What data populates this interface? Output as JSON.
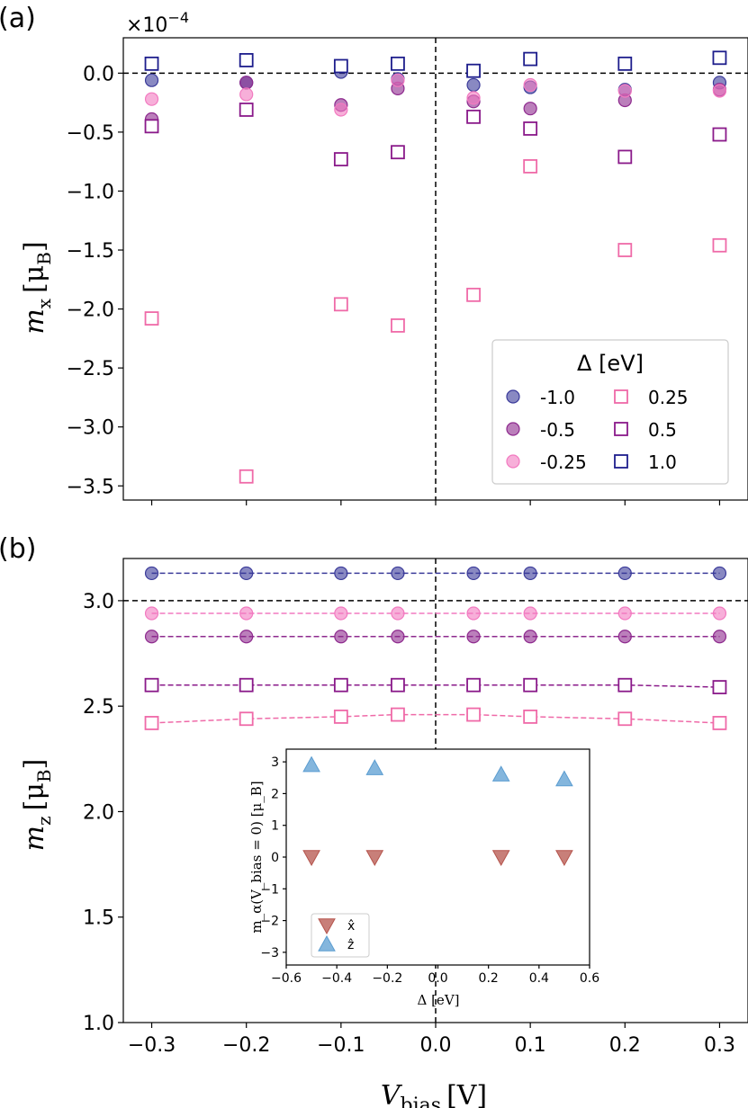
{
  "colors": {
    "dark_blue": "#3b3b9a",
    "purple": "#8e2a8e",
    "pink": "#f27ac0",
    "navy": "#1d1d8c",
    "sq_purple": "#8a1a8a",
    "sq_pink": "#ef6aa8",
    "inset_down": "#b5544c",
    "inset_up": "#5b9dd1"
  },
  "panel_a": {
    "letter": "(a)",
    "scale_label": "×10",
    "scale_exp": "−4",
    "ylabel_main": "m",
    "ylabel_sub": "x",
    "ylabel_unit": "[μ",
    "ylabel_unit_sub": "B",
    "ylabel_close": "]"
  },
  "panel_b": {
    "letter": "(b)",
    "ylabel_main": "m",
    "ylabel_sub": "z",
    "ylabel_unit": "[μ",
    "ylabel_unit_sub": "B",
    "ylabel_close": "]"
  },
  "xlabel": {
    "main": "V",
    "sub": "bias",
    "unit": "[V]"
  },
  "legend": {
    "title": "Δ [eV]",
    "entries": [
      {
        "label": "-1.0",
        "marker": "circle",
        "color": "#3b3b9a"
      },
      {
        "label": "-0.5",
        "marker": "circle",
        "color": "#8e2a8e"
      },
      {
        "label": "-0.25",
        "marker": "circle",
        "color": "#f27ac0"
      },
      {
        "label": "0.25",
        "marker": "square",
        "color": "#ef6aa8"
      },
      {
        "label": "0.5",
        "marker": "square",
        "color": "#8a1a8a"
      },
      {
        "label": "1.0",
        "marker": "square",
        "color": "#1d1d8c"
      }
    ]
  },
  "inset": {
    "ylabel": "m_α(V_bias = 0) [μ_B]",
    "xlabel": "Δ [eV]",
    "legend": [
      {
        "label": "x̂",
        "marker": "triangle-down",
        "color": "#b5544c"
      },
      {
        "label": "ẑ",
        "marker": "triangle-up",
        "color": "#5b9dd1"
      }
    ]
  },
  "chart_data": [
    {
      "type": "scatter",
      "panel": "a",
      "xlabel": "V_bias [V]",
      "ylabel": "m_x [μ_B]",
      "y_scale_factor": "×10^-4",
      "xlim": [
        -0.33,
        0.33
      ],
      "ylim": [
        -3.62,
        0.3
      ],
      "xticks": [
        -0.3,
        -0.2,
        -0.1,
        0.0,
        0.1,
        0.2,
        0.3
      ],
      "xtick_labels": [
        "−0.3",
        "−0.2",
        "−0.1",
        "0.0",
        "0.1",
        "0.2",
        "0.3"
      ],
      "yticks": [
        0.0,
        -0.5,
        -1.0,
        -1.5,
        -2.0,
        -2.5,
        -3.0,
        -3.5
      ],
      "ytick_labels": [
        "0.0",
        "−0.5",
        "−1.0",
        "−1.5",
        "−2.0",
        "−2.5",
        "−3.0",
        "−3.5"
      ],
      "reference_lines": {
        "horizontal": 0.0,
        "vertical": 0.0
      },
      "series": [
        {
          "name": "-1.0",
          "marker": "circle",
          "x": [
            -0.3,
            -0.2,
            -0.1,
            -0.04,
            0.04,
            0.1,
            0.2,
            0.3
          ],
          "y": [
            -0.06,
            -0.08,
            0.01,
            -0.05,
            -0.1,
            -0.12,
            -0.14,
            -0.08
          ]
        },
        {
          "name": "-0.5",
          "marker": "circle",
          "x": [
            -0.3,
            -0.2,
            -0.1,
            -0.04,
            0.04,
            0.1,
            0.2,
            0.3
          ],
          "y": [
            -0.39,
            -0.08,
            -0.27,
            -0.13,
            -0.24,
            -0.3,
            -0.23,
            -0.14
          ]
        },
        {
          "name": "-0.25",
          "marker": "circle",
          "x": [
            -0.3,
            -0.2,
            -0.1,
            -0.04,
            0.04,
            0.1,
            0.2,
            0.3
          ],
          "y": [
            -0.22,
            -0.18,
            -0.31,
            -0.06,
            -0.21,
            -0.1,
            -0.15,
            -0.15
          ]
        },
        {
          "name": "0.25",
          "marker": "square",
          "x": [
            -0.3,
            -0.2,
            -0.1,
            -0.04,
            0.04,
            0.1,
            0.2,
            0.3
          ],
          "y": [
            -2.08,
            -3.42,
            -1.96,
            -2.14,
            -1.88,
            -0.79,
            -1.5,
            -1.46
          ]
        },
        {
          "name": "0.5",
          "marker": "square",
          "x": [
            -0.3,
            -0.2,
            -0.1,
            -0.04,
            0.04,
            0.1,
            0.2,
            0.3
          ],
          "y": [
            -0.45,
            -0.31,
            -0.73,
            -0.67,
            -0.37,
            -0.47,
            -0.71,
            -0.52
          ]
        },
        {
          "name": "1.0",
          "marker": "square",
          "x": [
            -0.3,
            -0.2,
            -0.1,
            -0.04,
            0.04,
            0.1,
            0.2,
            0.3
          ],
          "y": [
            0.08,
            0.11,
            0.06,
            0.08,
            0.02,
            0.12,
            0.08,
            0.13
          ]
        }
      ]
    },
    {
      "type": "line",
      "panel": "b",
      "xlabel": "V_bias [V]",
      "ylabel": "m_z [μ_B]",
      "xlim": [
        -0.33,
        0.33
      ],
      "ylim": [
        1.0,
        3.2
      ],
      "xticks": [
        -0.3,
        -0.2,
        -0.1,
        0.0,
        0.1,
        0.2,
        0.3
      ],
      "xtick_labels": [
        "−0.3",
        "−0.2",
        "−0.1",
        "0.0",
        "0.1",
        "0.2",
        "0.3"
      ],
      "yticks": [
        1.0,
        1.5,
        2.0,
        2.5,
        3.0
      ],
      "ytick_labels": [
        "1.0",
        "1.5",
        "2.0",
        "2.5",
        "3.0"
      ],
      "reference_lines": {
        "horizontal": 3.0,
        "vertical": 0.0
      },
      "series": [
        {
          "name": "-1.0",
          "marker": "circle",
          "x": [
            -0.3,
            -0.2,
            -0.1,
            -0.04,
            0.04,
            0.1,
            0.2,
            0.3
          ],
          "y": [
            3.13,
            3.13,
            3.13,
            3.13,
            3.13,
            3.13,
            3.13,
            3.13
          ]
        },
        {
          "name": "-0.25",
          "marker": "circle",
          "x": [
            -0.3,
            -0.2,
            -0.1,
            -0.04,
            0.04,
            0.1,
            0.2,
            0.3
          ],
          "y": [
            2.94,
            2.94,
            2.94,
            2.94,
            2.94,
            2.94,
            2.94,
            2.94
          ]
        },
        {
          "name": "-0.5",
          "marker": "circle",
          "x": [
            -0.3,
            -0.2,
            -0.1,
            -0.04,
            0.04,
            0.1,
            0.2,
            0.3
          ],
          "y": [
            2.83,
            2.83,
            2.83,
            2.83,
            2.83,
            2.83,
            2.83,
            2.83
          ]
        },
        {
          "name": "0.5",
          "marker": "square",
          "x": [
            -0.3,
            -0.2,
            -0.1,
            -0.04,
            0.04,
            0.1,
            0.2,
            0.3
          ],
          "y": [
            2.6,
            2.6,
            2.6,
            2.6,
            2.6,
            2.6,
            2.6,
            2.59
          ]
        },
        {
          "name": "0.25",
          "marker": "square",
          "x": [
            -0.3,
            -0.2,
            -0.1,
            -0.04,
            0.04,
            0.1,
            0.2,
            0.3
          ],
          "y": [
            2.42,
            2.44,
            2.45,
            2.46,
            2.46,
            2.45,
            2.44,
            2.42
          ]
        }
      ]
    },
    {
      "type": "scatter",
      "panel": "inset",
      "xlabel": "Δ [eV]",
      "ylabel": "m_α(V_bias = 0) [μ_B]",
      "xlim": [
        -0.6,
        0.6
      ],
      "ylim": [
        -3.4,
        3.4
      ],
      "xticks": [
        -0.6,
        -0.4,
        -0.2,
        0.0,
        0.2,
        0.4,
        0.6
      ],
      "xtick_labels": [
        "−0.6",
        "−0.4",
        "−0.2",
        "0.0",
        "0.2",
        "0.4",
        "0.6"
      ],
      "yticks": [
        3,
        2,
        1,
        0,
        -1,
        -2,
        -3
      ],
      "ytick_labels": [
        "3",
        "2",
        "1",
        "0",
        "−1",
        "−2",
        "−3"
      ],
      "series": [
        {
          "name": "x̂",
          "marker": "triangle-down",
          "x": [
            -0.5,
            -0.25,
            0.25,
            0.5
          ],
          "y": [
            0.0,
            0.0,
            0.0,
            0.0
          ]
        },
        {
          "name": "ẑ",
          "marker": "triangle-up",
          "x": [
            -0.5,
            -0.25,
            0.25,
            0.5
          ],
          "y": [
            2.9,
            2.8,
            2.6,
            2.45
          ]
        }
      ]
    }
  ]
}
